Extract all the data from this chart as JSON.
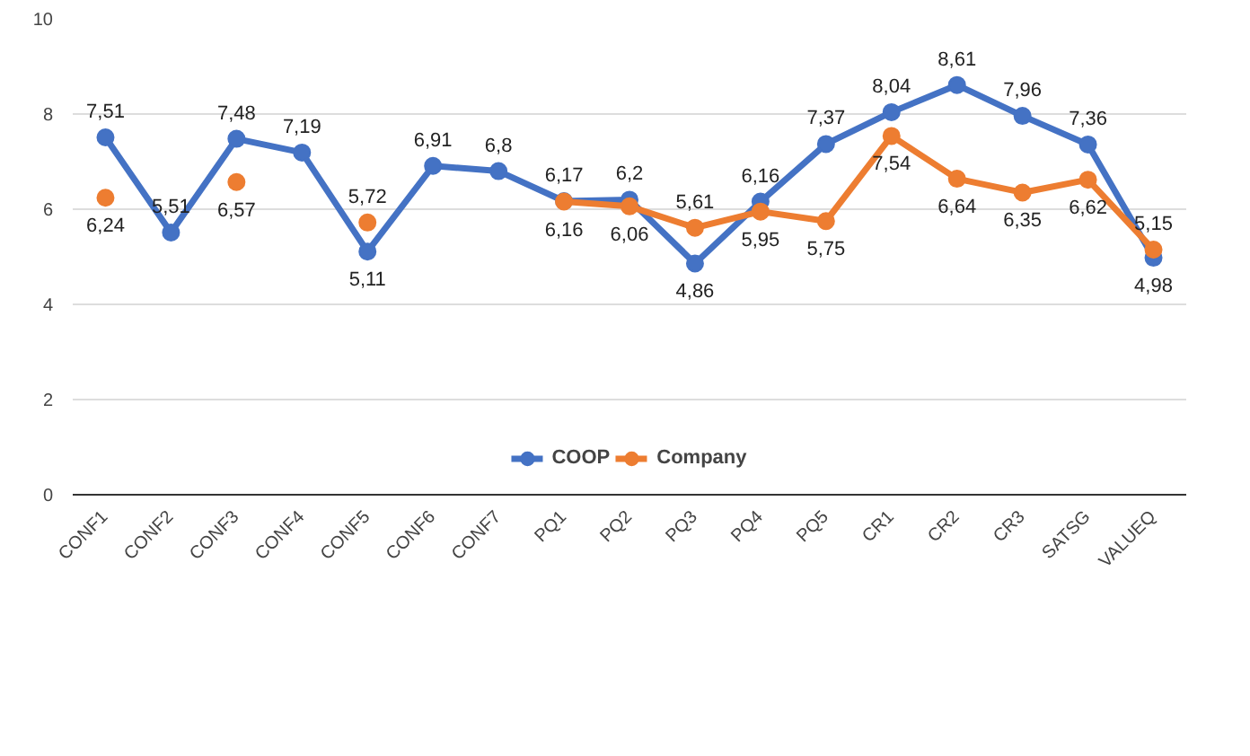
{
  "chart_data": {
    "type": "line",
    "categories": [
      "CONF1",
      "CONF2",
      "CONF3",
      "CONF4",
      "CONF5",
      "CONF6",
      "CONF7",
      "PQ1",
      "PQ2",
      "PQ3",
      "PQ4",
      "PQ5",
      "CR1",
      "CR2",
      "CR3",
      "SATSG",
      "VALUEQ"
    ],
    "series": [
      {
        "name": "COOP",
        "color": "#4472c4",
        "values": [
          7.51,
          5.51,
          7.48,
          7.19,
          5.11,
          6.91,
          6.8,
          6.17,
          6.2,
          4.86,
          6.16,
          7.37,
          8.04,
          8.61,
          7.96,
          7.36,
          4.98
        ],
        "value_labels": [
          "7,51",
          "5,51",
          "7,48",
          "7,19",
          "5,11",
          "6,91",
          "6,8",
          "6,17",
          "6,2",
          "4,86",
          "6,16",
          "7,37",
          "8,04",
          "8,61",
          "7,96",
          "7,36",
          "4,98"
        ]
      },
      {
        "name": "Company",
        "color": "#ed7d31",
        "values": [
          6.24,
          null,
          6.57,
          null,
          5.72,
          null,
          null,
          6.16,
          6.06,
          5.61,
          5.95,
          5.75,
          7.54,
          6.64,
          6.35,
          6.62,
          5.15
        ],
        "value_labels": [
          "6,24",
          null,
          "6,57",
          null,
          "5,72",
          null,
          null,
          "6,16",
          "6,06",
          "5,61",
          "5,95",
          "5,75",
          "7,54",
          "6,64",
          "6,35",
          "6,62",
          "5,15"
        ]
      }
    ],
    "ylim": [
      0,
      10
    ],
    "yticks": [
      0,
      2,
      4,
      6,
      8,
      10
    ],
    "grid": "y",
    "legend": "bottom",
    "marker": "circle",
    "line_style": "solid"
  }
}
